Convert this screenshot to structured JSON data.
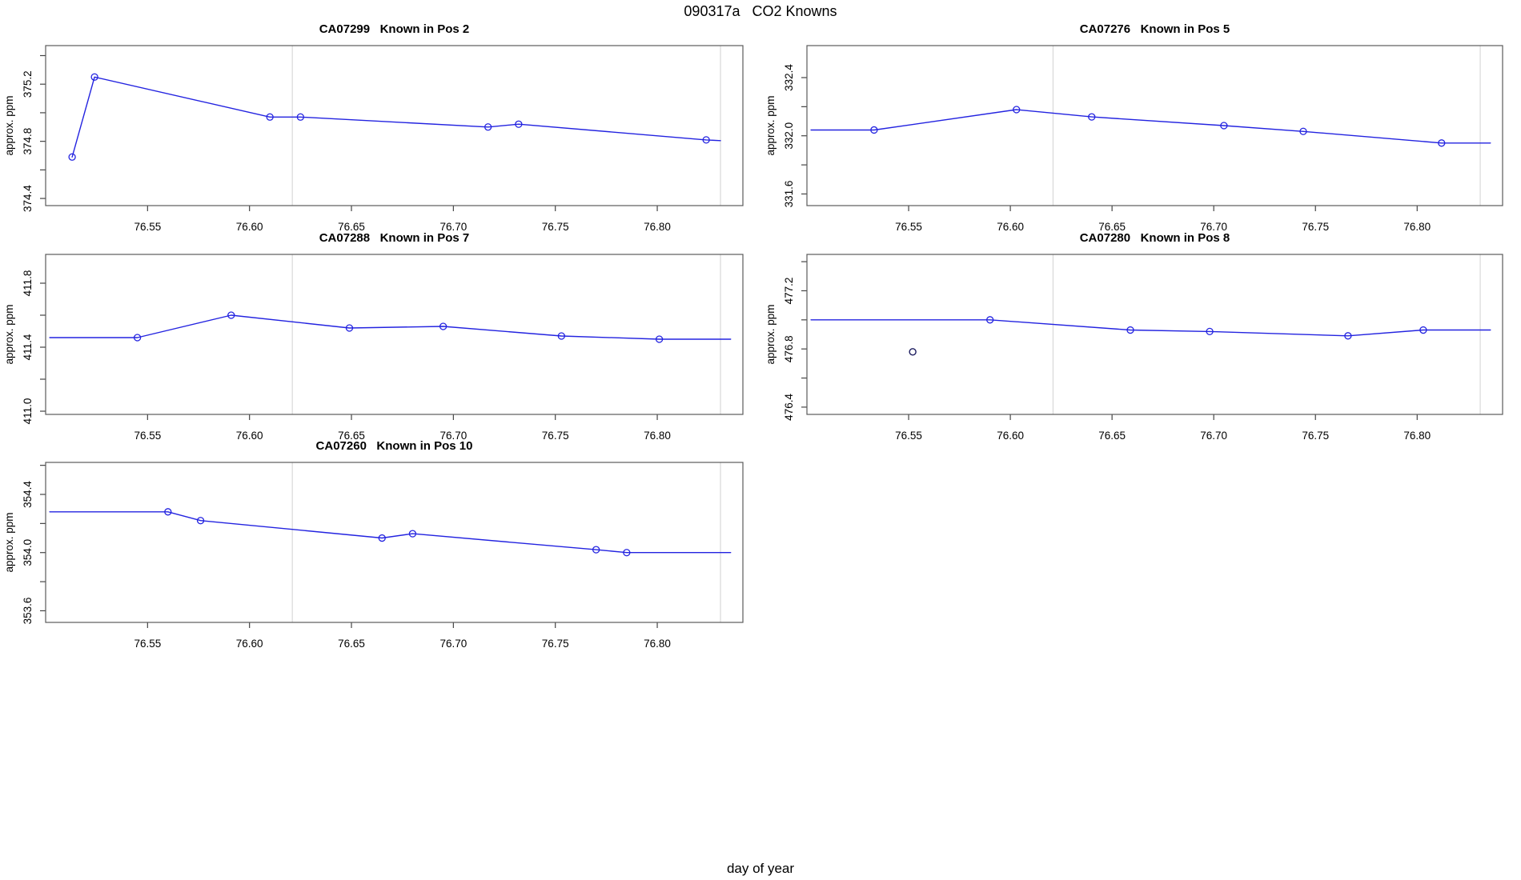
{
  "page": {
    "title": "090317a   CO2 Knowns",
    "xlabel_global": "day of year"
  },
  "colors": {
    "line": "#2323e0",
    "marker": "#2323e0",
    "extra_marker": "#1b1b5e",
    "grid_line": "#d8d8d8",
    "box": "#5a5a5a",
    "tick": "#444444",
    "text": "#000000",
    "background": "#ffffff"
  },
  "chart_data": [
    {
      "type": "line",
      "title": "CA07299   Known in Pos 2",
      "sample_id": "CA07299",
      "position_label": "Known in Pos 2",
      "grid": {
        "row": 0,
        "col": 0
      },
      "ylabel": "approx. ppm",
      "xlim": [
        76.5,
        76.842
      ],
      "ylim": [
        374.35,
        375.47
      ],
      "xticks": [
        76.55,
        76.6,
        76.65,
        76.7,
        76.75,
        76.8
      ],
      "yticks_major": [
        374.4,
        374.8,
        375.2
      ],
      "yticks_minor": [
        374.6,
        375.0,
        375.4
      ],
      "vlines": [
        76.621,
        76.831
      ],
      "line": [
        [
          76.513,
          374.69
        ],
        [
          76.524,
          375.25
        ],
        [
          76.61,
          374.97
        ],
        [
          76.625,
          374.97
        ],
        [
          76.717,
          374.9
        ],
        [
          76.732,
          374.92
        ],
        [
          76.824,
          374.81
        ],
        [
          76.831,
          374.805
        ]
      ],
      "markers": [
        [
          76.513,
          374.69
        ],
        [
          76.524,
          375.25
        ],
        [
          76.61,
          374.97
        ],
        [
          76.625,
          374.97
        ],
        [
          76.717,
          374.9
        ],
        [
          76.732,
          374.92
        ],
        [
          76.824,
          374.81
        ]
      ],
      "extra_markers": []
    },
    {
      "type": "line",
      "title": "CA07276   Known in Pos 5",
      "sample_id": "CA07276",
      "position_label": "Known in Pos 5",
      "grid": {
        "row": 0,
        "col": 1
      },
      "ylabel": "approx. ppm",
      "xlim": [
        76.5,
        76.842
      ],
      "ylim": [
        331.52,
        332.62
      ],
      "xticks": [
        76.55,
        76.6,
        76.65,
        76.7,
        76.75,
        76.8
      ],
      "yticks_major": [
        331.6,
        332.0,
        332.4
      ],
      "yticks_minor": [
        331.8,
        332.2
      ],
      "vlines": [
        76.621,
        76.831
      ],
      "line": [
        [
          76.502,
          332.04
        ],
        [
          76.533,
          332.04
        ],
        [
          76.603,
          332.18
        ],
        [
          76.64,
          332.13
        ],
        [
          76.705,
          332.07
        ],
        [
          76.744,
          332.03
        ],
        [
          76.812,
          331.95
        ],
        [
          76.836,
          331.95
        ]
      ],
      "markers": [
        [
          76.533,
          332.04
        ],
        [
          76.603,
          332.18
        ],
        [
          76.64,
          332.13
        ],
        [
          76.705,
          332.07
        ],
        [
          76.744,
          332.03
        ],
        [
          76.812,
          331.95
        ]
      ],
      "extra_markers": []
    },
    {
      "type": "line",
      "title": "CA07288   Known in Pos 7",
      "sample_id": "CA07288",
      "position_label": "Known in Pos 7",
      "grid": {
        "row": 1,
        "col": 0
      },
      "ylabel": "approx. ppm",
      "xlim": [
        76.5,
        76.842
      ],
      "ylim": [
        410.98,
        411.98
      ],
      "xticks": [
        76.55,
        76.6,
        76.65,
        76.7,
        76.75,
        76.8
      ],
      "yticks_major": [
        411.0,
        411.4,
        411.8
      ],
      "yticks_minor": [
        411.2,
        411.6
      ],
      "vlines": [
        76.621,
        76.831
      ],
      "line": [
        [
          76.502,
          411.46
        ],
        [
          76.545,
          411.46
        ],
        [
          76.591,
          411.6
        ],
        [
          76.649,
          411.52
        ],
        [
          76.695,
          411.53
        ],
        [
          76.753,
          411.47
        ],
        [
          76.801,
          411.45
        ],
        [
          76.836,
          411.45
        ]
      ],
      "markers": [
        [
          76.545,
          411.46
        ],
        [
          76.591,
          411.6
        ],
        [
          76.649,
          411.52
        ],
        [
          76.695,
          411.53
        ],
        [
          76.753,
          411.47
        ],
        [
          76.801,
          411.45
        ]
      ],
      "extra_markers": []
    },
    {
      "type": "line",
      "title": "CA07280   Known in Pos 8",
      "sample_id": "CA07280",
      "position_label": "Known in Pos 8",
      "grid": {
        "row": 1,
        "col": 1
      },
      "ylabel": "approx. ppm",
      "xlim": [
        76.5,
        76.842
      ],
      "ylim": [
        476.35,
        477.45
      ],
      "xticks": [
        76.55,
        76.6,
        76.65,
        76.7,
        76.75,
        76.8
      ],
      "yticks_major": [
        476.4,
        476.8,
        477.2
      ],
      "yticks_minor": [
        476.6,
        477.0,
        477.4
      ],
      "vlines": [
        76.621,
        76.831
      ],
      "line": [
        [
          76.502,
          477.0
        ],
        [
          76.59,
          477.0
        ],
        [
          76.659,
          476.93
        ],
        [
          76.698,
          476.92
        ],
        [
          76.766,
          476.89
        ],
        [
          76.803,
          476.93
        ],
        [
          76.836,
          476.93
        ]
      ],
      "markers": [
        [
          76.59,
          477.0
        ],
        [
          76.659,
          476.93
        ],
        [
          76.698,
          476.92
        ],
        [
          76.766,
          476.89
        ],
        [
          76.803,
          476.93
        ]
      ],
      "extra_markers": [
        [
          76.552,
          476.78
        ]
      ]
    },
    {
      "type": "line",
      "title": "CA07260   Known in Pos 10",
      "sample_id": "CA07260",
      "position_label": "Known in Pos 10",
      "grid": {
        "row": 2,
        "col": 0
      },
      "ylabel": "approx. ppm",
      "xlim": [
        76.5,
        76.842
      ],
      "ylim": [
        353.52,
        354.62
      ],
      "xticks": [
        76.55,
        76.6,
        76.65,
        76.7,
        76.75,
        76.8
      ],
      "yticks_major": [
        353.6,
        354.0,
        354.4
      ],
      "yticks_minor": [
        353.8,
        354.2,
        354.6
      ],
      "vlines": [
        76.621,
        76.831
      ],
      "line": [
        [
          76.502,
          354.28
        ],
        [
          76.56,
          354.28
        ],
        [
          76.576,
          354.22
        ],
        [
          76.665,
          354.1
        ],
        [
          76.68,
          354.13
        ],
        [
          76.77,
          354.02
        ],
        [
          76.785,
          354.0
        ],
        [
          76.836,
          354.0
        ]
      ],
      "markers": [
        [
          76.56,
          354.28
        ],
        [
          76.576,
          354.22
        ],
        [
          76.665,
          354.1
        ],
        [
          76.68,
          354.13
        ],
        [
          76.77,
          354.02
        ],
        [
          76.785,
          354.0
        ]
      ],
      "extra_markers": []
    }
  ]
}
